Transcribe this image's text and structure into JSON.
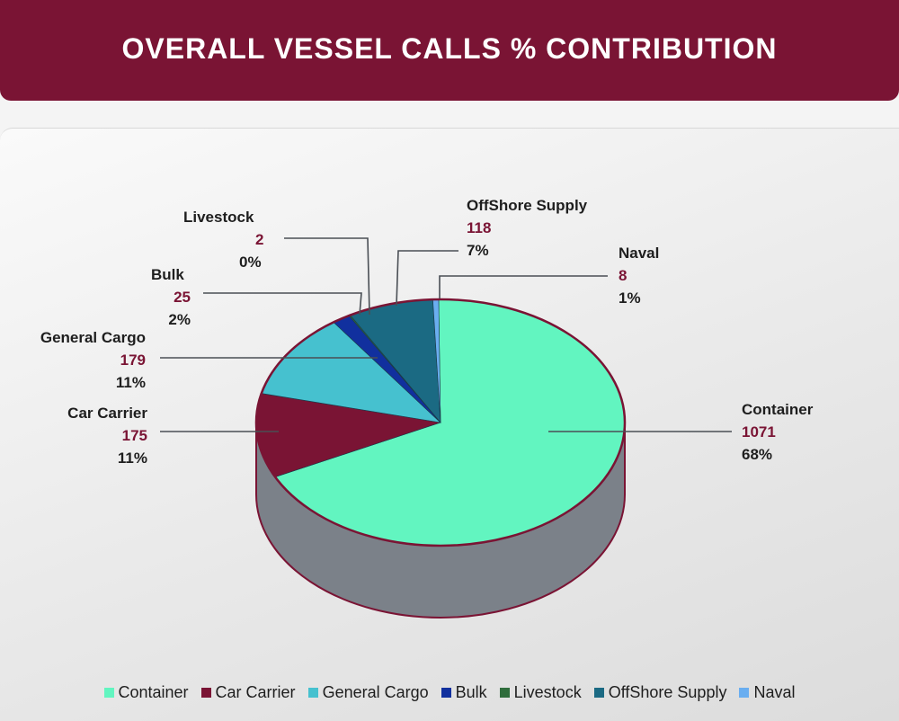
{
  "chart_data": {
    "type": "pie",
    "title": "OVERALL VESSEL CALLS % CONTRIBUTION",
    "slices": [
      {
        "name": "Container",
        "value": 1071,
        "percent": "68%",
        "color": "#62f5c0"
      },
      {
        "name": "Car Carrier",
        "value": 175,
        "percent": "11%",
        "color": "#7a1434"
      },
      {
        "name": "General Cargo",
        "value": 179,
        "percent": "11%",
        "color": "#46c1cf"
      },
      {
        "name": "Bulk",
        "value": 25,
        "percent": "2%",
        "color": "#11309e"
      },
      {
        "name": "Livestock",
        "value": 2,
        "percent": "0%",
        "color": "#2f6d3c"
      },
      {
        "name": "OffShore Supply",
        "value": 118,
        "percent": "7%",
        "color": "#1b6a83"
      },
      {
        "name": "Naval",
        "value": 8,
        "percent": "1%",
        "color": "#6aaef0"
      }
    ],
    "legend_position": "bottom"
  },
  "colors": {
    "banner": "#7a1434",
    "pie_side": "#7b8189",
    "pie_outline": "#7a1434",
    "leader_line": "#4a4f55"
  }
}
